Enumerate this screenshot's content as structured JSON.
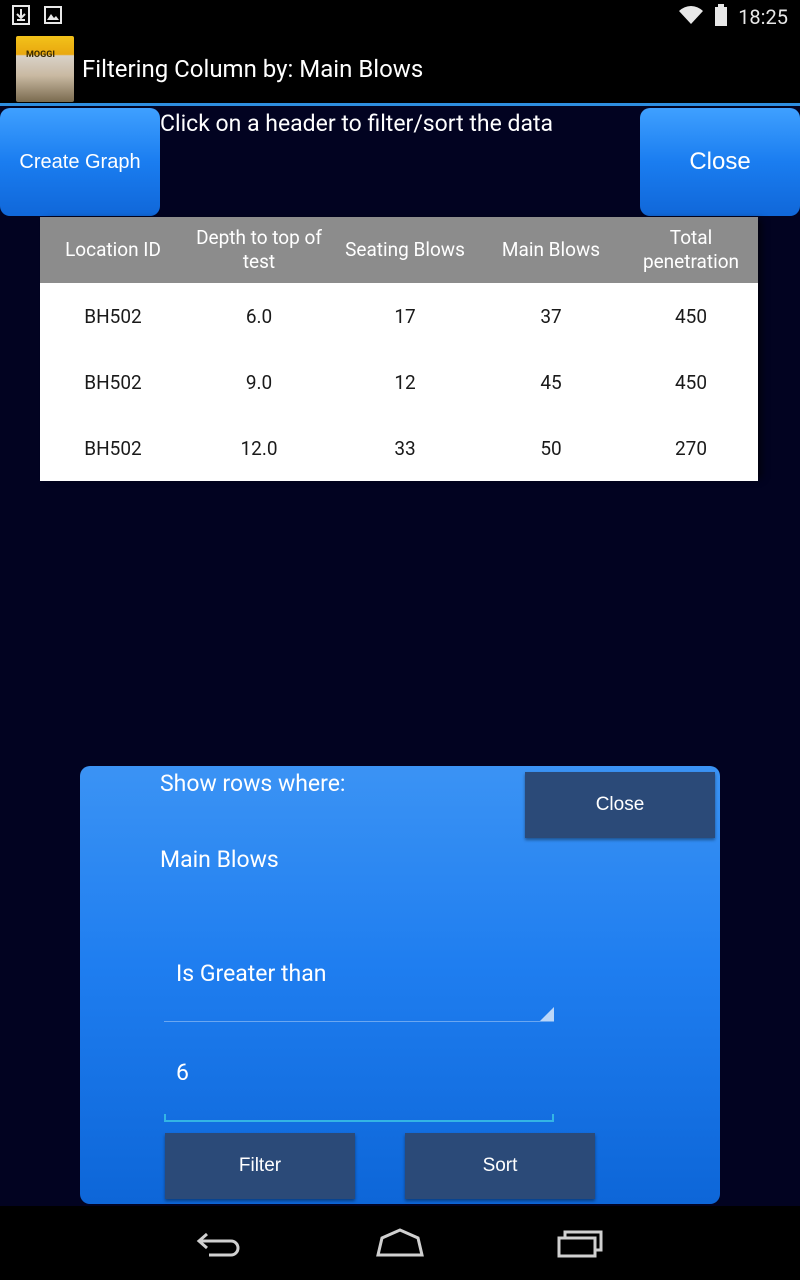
{
  "status_bar": {
    "time": "18:25",
    "icons": [
      "download-icon",
      "image-icon",
      "wifi-icon",
      "battery-icon"
    ]
  },
  "title_bar": {
    "title": "Filtering Column by: Main Blows",
    "icon": "app-logo-icon"
  },
  "toolbar": {
    "create_graph_label": "Create Graph",
    "close_label": "Close",
    "instruction": "Click on a header to filter/sort the data"
  },
  "table": {
    "headers": [
      "Location ID",
      "Depth to top of test",
      "Seating Blows",
      "Main Blows",
      "Total penetration"
    ],
    "rows": [
      [
        "BH502",
        "6.0",
        "17",
        "37",
        "450"
      ],
      [
        "BH502",
        "9.0",
        "12",
        "45",
        "450"
      ],
      [
        "BH502",
        "12.0",
        "33",
        "50",
        "270"
      ]
    ]
  },
  "filter_panel": {
    "heading": "Show rows where:",
    "column_name": "Main Blows",
    "close_label": "Close",
    "condition": "Is Greater than",
    "value": "6",
    "filter_label": "Filter",
    "sort_label": "Sort"
  },
  "nav_bar": {
    "buttons": [
      "back-icon",
      "home-icon",
      "recent-apps-icon"
    ]
  },
  "colors": {
    "background": "#020321",
    "accent_blue": "#1f7ef0",
    "dark_button": "#2b4a78",
    "table_header": "#8c8c8c",
    "input_underline": "#33b5e5"
  }
}
